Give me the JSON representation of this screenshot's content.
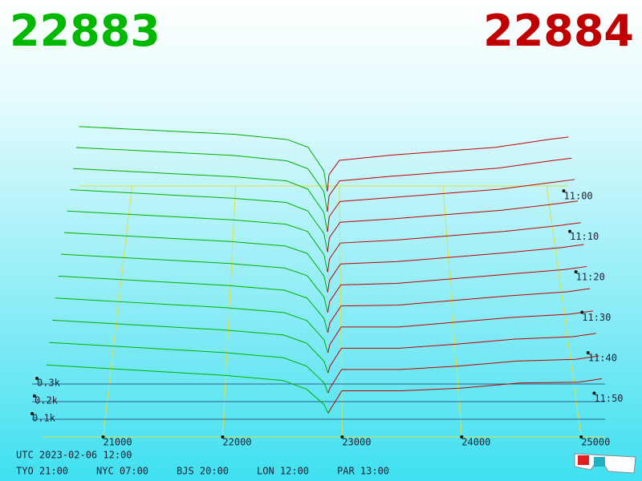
{
  "chart_data": {
    "type": "depth3d",
    "bid_price": 22883,
    "ask_price": 22884,
    "bid_color": "#00b000",
    "ask_color": "#c00000",
    "xlim": [
      20500,
      25200
    ],
    "xticks": [
      21000,
      22000,
      23000,
      24000,
      25000
    ],
    "ylim": [
      0,
      500
    ],
    "yticks": [
      {
        "value": 100,
        "label": "0.1k"
      },
      {
        "value": 200,
        "label": "0.2k"
      },
      {
        "value": 300,
        "label": "0.3k"
      }
    ],
    "zlim": [
      658,
      720
    ],
    "zticks": [
      {
        "value": 660,
        "label": "11:00"
      },
      {
        "value": 670,
        "label": "11:10"
      },
      {
        "value": 680,
        "label": "11:20"
      },
      {
        "value": 690,
        "label": "11:30"
      },
      {
        "value": 700,
        "label": "11:40"
      },
      {
        "value": 710,
        "label": "11:50"
      }
    ],
    "bid_prices": [
      20500,
      21000,
      21500,
      22000,
      22500,
      22700,
      22850,
      22883
    ],
    "ask_prices": [
      22884,
      22900,
      23000,
      23500,
      24000,
      24500,
      25000,
      25200
    ],
    "snapshots": [
      {
        "time": 660,
        "bids": [
          520,
          500,
          480,
          460,
          420,
          360,
          180,
          20
        ],
        "asks": [
          20,
          150,
          260,
          300,
          330,
          360,
          420,
          440
        ]
      },
      {
        "time": 665,
        "bids": [
          500,
          480,
          460,
          440,
          400,
          340,
          170,
          20
        ],
        "asks": [
          20,
          140,
          250,
          285,
          315,
          345,
          400,
          420
        ]
      },
      {
        "time": 670,
        "bids": [
          480,
          460,
          440,
          420,
          390,
          330,
          160,
          20
        ],
        "asks": [
          20,
          130,
          240,
          270,
          300,
          330,
          380,
          400
        ]
      },
      {
        "time": 675,
        "bids": [
          460,
          440,
          420,
          400,
          370,
          310,
          150,
          20
        ],
        "asks": [
          20,
          120,
          230,
          255,
          285,
          315,
          360,
          380
        ]
      },
      {
        "time": 680,
        "bids": [
          440,
          420,
          400,
          380,
          350,
          300,
          140,
          20
        ],
        "asks": [
          20,
          110,
          220,
          240,
          270,
          300,
          340,
          360
        ]
      },
      {
        "time": 685,
        "bids": [
          420,
          400,
          380,
          360,
          330,
          280,
          130,
          20
        ],
        "asks": [
          20,
          100,
          210,
          225,
          255,
          285,
          320,
          340
        ]
      },
      {
        "time": 690,
        "bids": [
          400,
          380,
          360,
          340,
          310,
          260,
          120,
          20
        ],
        "asks": [
          20,
          90,
          200,
          210,
          240,
          270,
          300,
          320
        ]
      },
      {
        "time": 695,
        "bids": [
          380,
          360,
          340,
          320,
          290,
          240,
          110,
          20
        ],
        "asks": [
          20,
          80,
          190,
          195,
          225,
          255,
          280,
          300
        ]
      },
      {
        "time": 700,
        "bids": [
          360,
          340,
          320,
          300,
          270,
          220,
          100,
          20
        ],
        "asks": [
          20,
          70,
          180,
          180,
          210,
          240,
          260,
          280
        ]
      },
      {
        "time": 705,
        "bids": [
          340,
          320,
          300,
          280,
          250,
          200,
          90,
          20
        ],
        "asks": [
          20,
          60,
          170,
          170,
          195,
          225,
          240,
          260
        ]
      },
      {
        "time": 710,
        "bids": [
          320,
          300,
          280,
          260,
          230,
          180,
          80,
          20
        ],
        "asks": [
          20,
          50,
          160,
          160,
          180,
          210,
          220,
          240
        ]
      },
      {
        "time": 715,
        "bids": [
          300,
          280,
          260,
          240,
          210,
          160,
          70,
          20
        ],
        "asks": [
          20,
          40,
          150,
          150,
          165,
          195,
          200,
          220
        ]
      }
    ]
  },
  "footer": {
    "utc": "UTC 2023-02-06 12:00",
    "zones": [
      "TYO 21:00",
      "NYC 07:00",
      "BJS 20:00",
      "LON 12:00",
      "PAR 13:00"
    ]
  }
}
